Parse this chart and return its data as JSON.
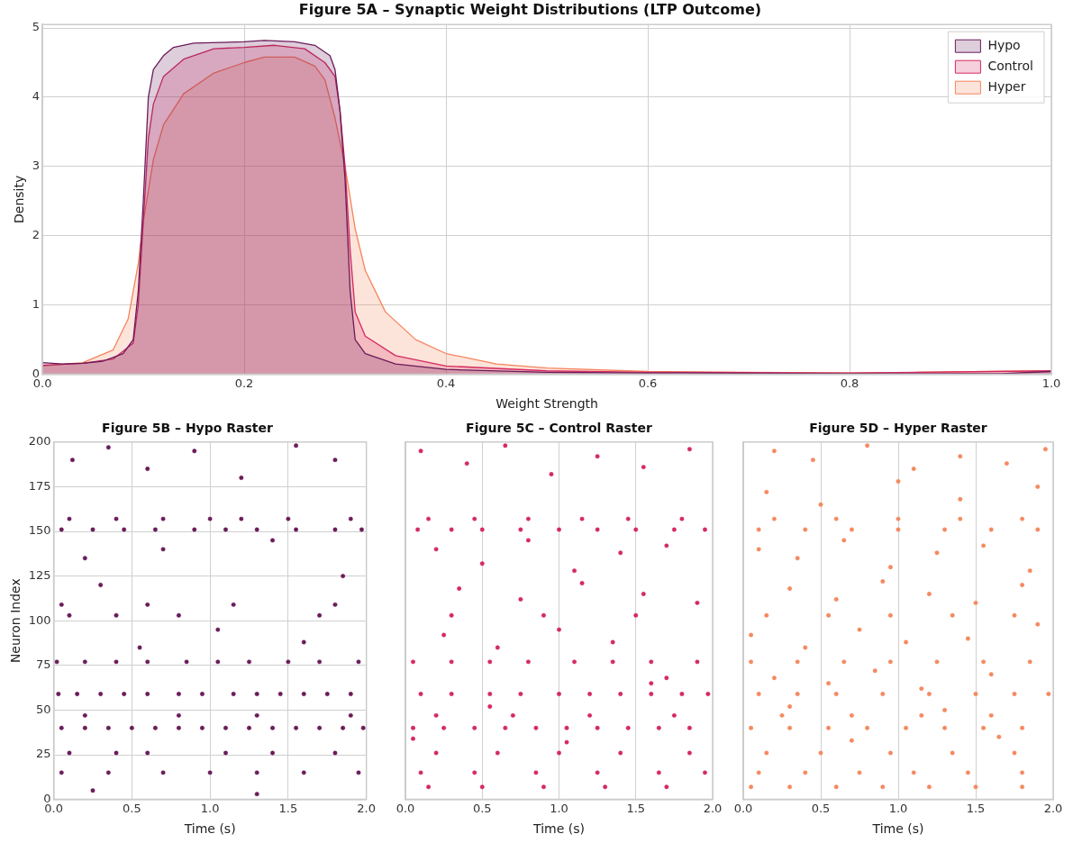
{
  "chart_data": [
    {
      "type": "area",
      "title": "Figure 5A – Synaptic Weight Distributions (LTP Outcome)",
      "xlabel": "Weight Strength",
      "ylabel": "Density",
      "xlim": [
        0,
        1
      ],
      "ylim": [
        0,
        5.05
      ],
      "xticks": [
        {
          "value": 0,
          "label": "0.0"
        },
        0.2,
        0.4,
        0.6,
        0.8,
        {
          "value": 1,
          "label": "1.0"
        }
      ],
      "yticks": [
        0,
        1,
        2,
        3,
        4,
        5
      ],
      "grid": true,
      "legend": "top right",
      "series": [
        {
          "name": "Hypo",
          "color": "#6a1b5a",
          "x": [
            0,
            0.02,
            0.04,
            0.06,
            0.08,
            0.09,
            0.095,
            0.1,
            0.105,
            0.11,
            0.12,
            0.13,
            0.15,
            0.2,
            0.22,
            0.25,
            0.27,
            0.285,
            0.29,
            0.295,
            0.3,
            0.305,
            0.31,
            0.32,
            0.35,
            0.4,
            0.5,
            0.6,
            0.8,
            0.95,
            1
          ],
          "values": [
            0.17,
            0.15,
            0.16,
            0.19,
            0.3,
            0.5,
            1.2,
            2.5,
            4.0,
            4.4,
            4.6,
            4.72,
            4.78,
            4.8,
            4.82,
            4.8,
            4.75,
            4.6,
            4.4,
            3.8,
            2.8,
            1.2,
            0.5,
            0.3,
            0.15,
            0.07,
            0.03,
            0.02,
            0.01,
            0.01,
            0.04
          ]
        },
        {
          "name": "Control",
          "color": "#d42a5e",
          "x": [
            0,
            0.04,
            0.07,
            0.09,
            0.095,
            0.1,
            0.105,
            0.11,
            0.12,
            0.14,
            0.17,
            0.2,
            0.23,
            0.26,
            0.28,
            0.29,
            0.295,
            0.3,
            0.305,
            0.31,
            0.32,
            0.35,
            0.4,
            0.5,
            0.6,
            0.8,
            1
          ],
          "values": [
            0.13,
            0.16,
            0.22,
            0.45,
            1.0,
            2.2,
            3.4,
            3.9,
            4.3,
            4.55,
            4.7,
            4.72,
            4.75,
            4.7,
            4.5,
            4.3,
            3.8,
            3.0,
            1.8,
            0.9,
            0.55,
            0.27,
            0.12,
            0.05,
            0.03,
            0.02,
            0.05
          ]
        },
        {
          "name": "Hyper",
          "color": "#f5845c",
          "x": [
            0,
            0.04,
            0.07,
            0.085,
            0.095,
            0.1,
            0.11,
            0.12,
            0.14,
            0.17,
            0.2,
            0.22,
            0.25,
            0.27,
            0.28,
            0.29,
            0.3,
            0.31,
            0.32,
            0.34,
            0.37,
            0.4,
            0.45,
            0.5,
            0.6,
            0.8,
            1
          ],
          "values": [
            0.12,
            0.17,
            0.35,
            0.8,
            1.6,
            2.2,
            3.1,
            3.6,
            4.05,
            4.35,
            4.5,
            4.58,
            4.58,
            4.45,
            4.25,
            3.7,
            3.0,
            2.1,
            1.5,
            0.9,
            0.5,
            0.3,
            0.15,
            0.09,
            0.04,
            0.02,
            0.05
          ]
        }
      ]
    },
    {
      "type": "scatter",
      "title": "Figure 5B – Hypo Raster",
      "xlabel": "Time (s)",
      "ylabel": "Neuron Index",
      "xlim": [
        0,
        2
      ],
      "ylim": [
        0,
        200
      ],
      "xticks": [
        {
          "value": 0,
          "label": "0.0"
        },
        0.5,
        {
          "value": 1,
          "label": "1.0"
        },
        1.5,
        {
          "value": 2,
          "label": "2.0"
        }
      ],
      "yticks": [
        0,
        25,
        50,
        75,
        100,
        125,
        150,
        175,
        200
      ],
      "grid": true,
      "marker": "circle",
      "series": [
        {
          "color": "#6a1b5a",
          "x": [
            0.05,
            0.2,
            0.35,
            0.5,
            0.65,
            0.8,
            0.95,
            1.1,
            1.25,
            1.4,
            1.55,
            1.7,
            1.85,
            1.98,
            0.03,
            0.15,
            0.3,
            0.45,
            0.6,
            0.8,
            0.95,
            1.15,
            1.3,
            1.45,
            1.6,
            1.75,
            1.9,
            0.02,
            0.2,
            0.4,
            0.6,
            0.85,
            1.05,
            1.25,
            1.5,
            1.7,
            1.95,
            0.05,
            0.25,
            0.45,
            0.65,
            0.9,
            1.1,
            1.3,
            1.55,
            1.8,
            1.97,
            0.1,
            0.4,
            0.7,
            1.0,
            1.2,
            1.5,
            1.9,
            0.1,
            0.4,
            0.6,
            1.1,
            1.4,
            1.8,
            0.05,
            0.35,
            0.7,
            1.0,
            1.3,
            1.6,
            1.95,
            0.2,
            0.8,
            1.3,
            1.9,
            0.1,
            0.4,
            0.8,
            1.7,
            0.05,
            0.6,
            1.15,
            1.8,
            0.12,
            0.35,
            0.6,
            0.9,
            1.2,
            1.55,
            1.8,
            0.2,
            0.7,
            1.4,
            1.85,
            0.3,
            1.05,
            0.55,
            1.6,
            0.25,
            1.3
          ],
          "values": [
            40,
            40,
            40,
            40,
            40,
            40,
            40,
            40,
            40,
            40,
            40,
            40,
            40,
            40,
            59,
            59,
            59,
            59,
            59,
            59,
            59,
            59,
            59,
            59,
            59,
            59,
            59,
            77,
            77,
            77,
            77,
            77,
            77,
            77,
            77,
            77,
            77,
            151,
            151,
            151,
            151,
            151,
            151,
            151,
            151,
            151,
            151,
            157,
            157,
            157,
            157,
            157,
            157,
            157,
            26,
            26,
            26,
            26,
            26,
            26,
            15,
            15,
            15,
            15,
            15,
            15,
            15,
            47,
            47,
            47,
            47,
            103,
            103,
            103,
            103,
            109,
            109,
            109,
            109,
            190,
            197,
            185,
            195,
            180,
            198,
            190,
            135,
            140,
            145,
            125,
            120,
            95,
            85,
            88,
            5,
            3
          ]
        }
      ]
    },
    {
      "type": "scatter",
      "title": "Figure 5C – Control Raster",
      "xlabel": "Time (s)",
      "xlim": [
        0,
        2
      ],
      "ylim": [
        0,
        200
      ],
      "xticks": [
        {
          "value": 0,
          "label": "0.0"
        },
        0.5,
        {
          "value": 1,
          "label": "1.0"
        },
        1.5,
        {
          "value": 2,
          "label": "2.0"
        }
      ],
      "yticks": [
        0,
        25,
        50,
        75,
        100,
        125,
        150,
        175,
        200
      ],
      "grid": "x",
      "tick_labels": "x",
      "marker": "circle",
      "series": [
        {
          "color": "#d42a5e",
          "x": [
            0.05,
            0.25,
            0.45,
            0.65,
            0.85,
            1.05,
            1.25,
            1.45,
            1.65,
            1.85,
            0.1,
            0.3,
            0.55,
            0.75,
            1.0,
            1.2,
            1.4,
            1.6,
            1.8,
            1.97,
            0.05,
            0.3,
            0.55,
            0.8,
            1.1,
            1.35,
            1.6,
            1.9,
            0.08,
            0.3,
            0.5,
            0.75,
            1.0,
            1.25,
            1.5,
            1.75,
            1.95,
            0.15,
            0.45,
            0.8,
            1.15,
            1.45,
            1.8,
            0.2,
            0.6,
            1.0,
            1.4,
            1.85,
            0.1,
            0.45,
            0.85,
            1.25,
            1.65,
            1.95,
            0.15,
            0.5,
            0.9,
            1.3,
            1.7,
            0.2,
            0.7,
            1.2,
            1.75,
            0.3,
            0.9,
            1.5,
            0.1,
            0.4,
            0.65,
            0.95,
            1.25,
            1.55,
            1.85,
            0.2,
            0.5,
            0.8,
            1.1,
            1.4,
            1.7,
            0.35,
            0.75,
            1.15,
            1.55,
            1.9,
            0.25,
            0.6,
            1.0,
            1.35,
            1.7,
            0.05,
            0.55,
            1.05,
            1.6
          ],
          "values": [
            40,
            40,
            40,
            40,
            40,
            40,
            40,
            40,
            40,
            40,
            59,
            59,
            59,
            59,
            59,
            59,
            59,
            59,
            59,
            59,
            77,
            77,
            77,
            77,
            77,
            77,
            77,
            77,
            151,
            151,
            151,
            151,
            151,
            151,
            151,
            151,
            151,
            157,
            157,
            157,
            157,
            157,
            157,
            26,
            26,
            26,
            26,
            26,
            15,
            15,
            15,
            15,
            15,
            15,
            7,
            7,
            7,
            7,
            7,
            47,
            47,
            47,
            47,
            103,
            103,
            103,
            195,
            188,
            198,
            182,
            192,
            186,
            196,
            140,
            132,
            145,
            128,
            138,
            142,
            118,
            112,
            121,
            115,
            110,
            92,
            85,
            95,
            88,
            68,
            34,
            52,
            32,
            65
          ]
        }
      ]
    },
    {
      "type": "scatter",
      "title": "Figure 5D – Hyper Raster",
      "xlabel": "Time (s)",
      "xlim": [
        0,
        2
      ],
      "ylim": [
        0,
        200
      ],
      "xticks": [
        {
          "value": 0,
          "label": "0.0"
        },
        0.5,
        {
          "value": 1,
          "label": "1.0"
        },
        1.5,
        {
          "value": 2,
          "label": "2.0"
        }
      ],
      "yticks": [
        0,
        25,
        50,
        75,
        100,
        125,
        150,
        175,
        200
      ],
      "grid": "x",
      "tick_labels": "x",
      "marker": "circle",
      "series": [
        {
          "color": "#f4895f",
          "x": [
            0.05,
            0.3,
            0.55,
            0.8,
            1.05,
            1.3,
            1.55,
            1.8,
            0.1,
            0.35,
            0.6,
            0.9,
            1.2,
            1.5,
            1.75,
            1.97,
            0.05,
            0.35,
            0.65,
            0.95,
            1.25,
            1.55,
            1.85,
            0.1,
            0.4,
            0.7,
            1.0,
            1.3,
            1.6,
            1.9,
            0.2,
            0.6,
            1.0,
            1.4,
            1.8,
            0.15,
            0.5,
            0.95,
            1.35,
            1.75,
            0.1,
            0.4,
            0.75,
            1.1,
            1.45,
            1.8,
            0.05,
            0.3,
            0.6,
            0.9,
            1.2,
            1.5,
            1.8,
            0.25,
            0.7,
            1.15,
            1.6,
            0.15,
            0.55,
            0.95,
            1.35,
            1.75,
            0.2,
            0.45,
            0.8,
            1.1,
            1.4,
            1.7,
            1.95,
            0.1,
            0.35,
            0.65,
            0.95,
            1.25,
            1.55,
            1.85,
            0.3,
            0.6,
            0.9,
            1.2,
            1.5,
            1.8,
            0.05,
            0.4,
            0.75,
            1.05,
            1.45,
            1.9,
            0.2,
            0.55,
            0.85,
            1.15,
            1.6,
            0.3,
            0.7,
            1.3,
            1.65,
            0.15,
            0.5,
            1.0,
            1.4,
            1.9
          ],
          "values": [
            40,
            40,
            40,
            40,
            40,
            40,
            40,
            40,
            59,
            59,
            59,
            59,
            59,
            59,
            59,
            59,
            77,
            77,
            77,
            77,
            77,
            77,
            77,
            151,
            151,
            151,
            151,
            151,
            151,
            151,
            157,
            157,
            157,
            157,
            157,
            26,
            26,
            26,
            26,
            26,
            15,
            15,
            15,
            15,
            15,
            15,
            7,
            7,
            7,
            7,
            7,
            7,
            7,
            47,
            47,
            47,
            47,
            103,
            103,
            103,
            103,
            103,
            195,
            190,
            198,
            185,
            192,
            188,
            196,
            140,
            135,
            145,
            130,
            138,
            142,
            128,
            118,
            112,
            122,
            115,
            110,
            120,
            92,
            85,
            95,
            88,
            90,
            98,
            68,
            65,
            72,
            62,
            70,
            52,
            33,
            50,
            35,
            172,
            165,
            178,
            168,
            175
          ]
        }
      ]
    }
  ]
}
